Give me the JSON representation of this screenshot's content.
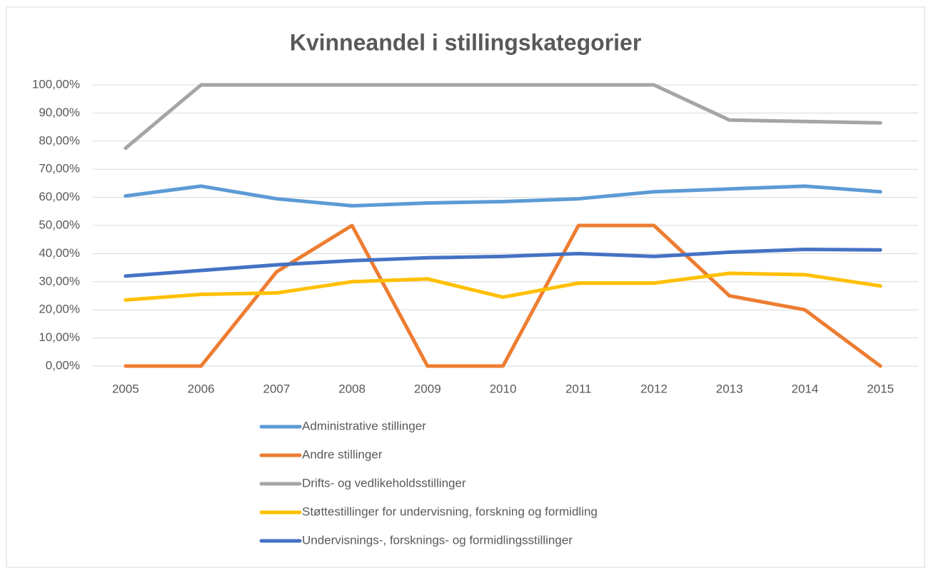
{
  "chart_data": {
    "type": "line",
    "title": "Kvinneandel i stillingskategorier",
    "categories": [
      "2005",
      "2006",
      "2007",
      "2008",
      "2009",
      "2010",
      "2011",
      "2012",
      "2013",
      "2014",
      "2015"
    ],
    "series": [
      {
        "name": "Administrative stillinger",
        "color": "#5b9bd5",
        "values": [
          60.5,
          64,
          59.5,
          57,
          58,
          58.5,
          59.5,
          62,
          63,
          64,
          62
        ]
      },
      {
        "name": "Andre stillinger",
        "color": "#ed7d31",
        "values": [
          0,
          0,
          33.5,
          50,
          0,
          0,
          50,
          50,
          25,
          20,
          0
        ]
      },
      {
        "name": "Drifts- og vedlikeholdsstillinger",
        "color": "#a5a5a5",
        "values": [
          77.5,
          100,
          100,
          100,
          100,
          100,
          100,
          100,
          87.5,
          87,
          86.5
        ]
      },
      {
        "name": "Støttestillinger for undervisning, forskning og formidling",
        "color": "#ffc000",
        "values": [
          23.5,
          25.5,
          26,
          30,
          31,
          24.5,
          29.5,
          29.5,
          33,
          32.5,
          28.5
        ]
      },
      {
        "name": "Undervisnings-, forsknings- og formidlingsstillinger",
        "color": "#4472c4",
        "values": [
          32,
          34,
          36,
          37.5,
          38.5,
          39,
          40,
          39,
          40.5,
          41.5,
          41.3
        ]
      }
    ],
    "ylim": [
      0,
      100
    ],
    "yticks": [
      {
        "value": 0,
        "label": "0,00%"
      },
      {
        "value": 10,
        "label": "10,00%"
      },
      {
        "value": 20,
        "label": "20,00%"
      },
      {
        "value": 30,
        "label": "30,00%"
      },
      {
        "value": 40,
        "label": "40,00%"
      },
      {
        "value": 50,
        "label": "50,00%"
      },
      {
        "value": 60,
        "label": "60,00%"
      },
      {
        "value": 70,
        "label": "70,00%"
      },
      {
        "value": 80,
        "label": "80,00%"
      },
      {
        "value": 90,
        "label": "90,00%"
      },
      {
        "value": 100,
        "label": "100,00%"
      }
    ],
    "grid": true,
    "legend": "bottom"
  }
}
